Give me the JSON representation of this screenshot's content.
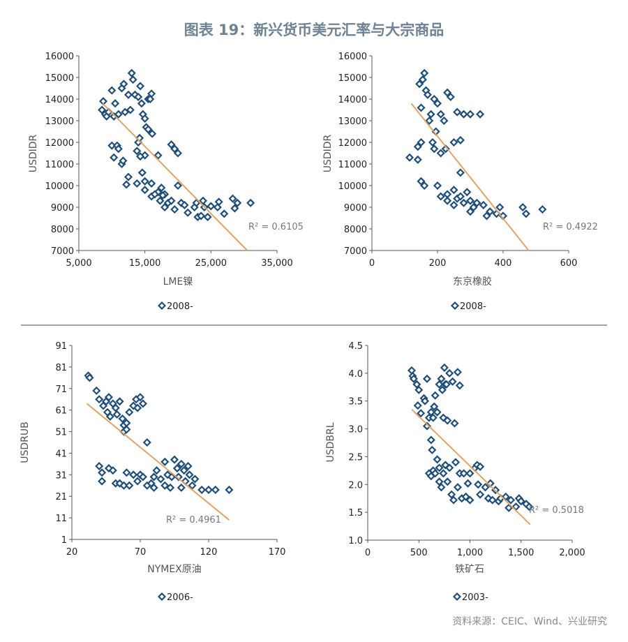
{
  "title": "图表 19：新兴货币美元汇率与大宗商品",
  "source": "资料来源：CEIC、Wind、兴业研究",
  "colors": {
    "marker": "#1f4e79",
    "trend": "#e0a466",
    "axis": "#555555",
    "title": "#6f8293"
  },
  "chart_data": [
    {
      "type": "scatter",
      "xlabel": "LME镍",
      "ylabel": "USDIDR",
      "xlim": [
        5000,
        35000
      ],
      "ylim": [
        7000,
        16000
      ],
      "xticks": [
        5000,
        15000,
        25000,
        35000
      ],
      "xtick_labels": [
        "5,000",
        "15,000",
        "25,000",
        "35,000"
      ],
      "yticks": [
        7000,
        8000,
        9000,
        10000,
        11000,
        12000,
        13000,
        14000,
        15000,
        16000
      ],
      "ytick_labels": [
        "7000",
        "8000",
        "9000",
        "10000",
        "11000",
        "12000",
        "13000",
        "14000",
        "15000",
        "16000"
      ],
      "legend": "2008-",
      "legend_position": "bottom",
      "r2_label": "R² = 0.6105",
      "trendline": [
        [
          8600,
          13800
        ],
        [
          30500,
          7000
        ]
      ],
      "points": [
        [
          8500,
          13500
        ],
        [
          8700,
          13900
        ],
        [
          9000,
          13300
        ],
        [
          9200,
          13200
        ],
        [
          9500,
          13400
        ],
        [
          10000,
          14400
        ],
        [
          10500,
          13800
        ],
        [
          10300,
          13200
        ],
        [
          11000,
          13300
        ],
        [
          11500,
          14500
        ],
        [
          11800,
          14700
        ],
        [
          12000,
          13400
        ],
        [
          12500,
          14200
        ],
        [
          12800,
          13500
        ],
        [
          13000,
          15200
        ],
        [
          13200,
          14900
        ],
        [
          13500,
          14200
        ],
        [
          14000,
          14100
        ],
        [
          14300,
          14600
        ],
        [
          14500,
          13800
        ],
        [
          14700,
          13300
        ],
        [
          15000,
          13100
        ],
        [
          15500,
          14000
        ],
        [
          15800,
          14000
        ],
        [
          16000,
          14250
        ],
        [
          15200,
          12700
        ],
        [
          15500,
          12600
        ],
        [
          16100,
          12400
        ],
        [
          14000,
          12000
        ],
        [
          14200,
          12200
        ],
        [
          15000,
          11400
        ],
        [
          14300,
          11350
        ],
        [
          13800,
          11600
        ],
        [
          17000,
          11400
        ],
        [
          19000,
          11900
        ],
        [
          19500,
          11700
        ],
        [
          20000,
          11500
        ],
        [
          10000,
          11850
        ],
        [
          10300,
          11300
        ],
        [
          10800,
          11850
        ],
        [
          11000,
          11700
        ],
        [
          11500,
          11000
        ],
        [
          11700,
          11150
        ],
        [
          12500,
          10400
        ],
        [
          12200,
          10050
        ],
        [
          14600,
          10600
        ],
        [
          13800,
          10100
        ],
        [
          15000,
          10200
        ],
        [
          16000,
          10100
        ],
        [
          15000,
          9800
        ],
        [
          16000,
          9500
        ],
        [
          17000,
          9700
        ],
        [
          17500,
          9900
        ],
        [
          18000,
          9600
        ],
        [
          17300,
          9300
        ],
        [
          18500,
          9200
        ],
        [
          18000,
          9000
        ],
        [
          19000,
          9300
        ],
        [
          19500,
          8900
        ],
        [
          20000,
          10000
        ],
        [
          20500,
          9200
        ],
        [
          21000,
          9100
        ],
        [
          21500,
          8750
        ],
        [
          22500,
          9000
        ],
        [
          23000,
          8550
        ],
        [
          23500,
          8600
        ],
        [
          23800,
          9300
        ],
        [
          24000,
          9000
        ],
        [
          24500,
          8550
        ],
        [
          25000,
          9050
        ],
        [
          26000,
          9000
        ],
        [
          26200,
          9250
        ],
        [
          27000,
          8700
        ],
        [
          28300,
          9400
        ],
        [
          28600,
          8950
        ],
        [
          29000,
          9200
        ],
        [
          31000,
          9200
        ],
        [
          22800,
          9200
        ],
        [
          17700,
          9550
        ],
        [
          16500,
          9600
        ]
      ]
    },
    {
      "type": "scatter",
      "xlabel": "东京橡胶",
      "ylabel": "USDIDR",
      "xlim": [
        0,
        600
      ],
      "ylim": [
        7000,
        16000
      ],
      "xticks": [
        0,
        200,
        400,
        600
      ],
      "xtick_labels": [
        "0",
        "200",
        "400",
        "600"
      ],
      "yticks": [
        7000,
        8000,
        9000,
        10000,
        11000,
        12000,
        13000,
        14000,
        15000,
        16000
      ],
      "ytick_labels": [
        "7000",
        "8000",
        "9000",
        "10000",
        "11000",
        "12000",
        "13000",
        "14000",
        "15000",
        "16000"
      ],
      "legend": "2008-",
      "legend_position": "bottom",
      "r2_label": "R² = 0.4922",
      "trendline": [
        [
          120,
          13800
        ],
        [
          478,
          7000
        ]
      ],
      "points": [
        [
          115,
          11300
        ],
        [
          140,
          11800
        ],
        [
          150,
          12000
        ],
        [
          145,
          14700
        ],
        [
          155,
          14900
        ],
        [
          160,
          15200
        ],
        [
          165,
          14400
        ],
        [
          150,
          13600
        ],
        [
          170,
          14200
        ],
        [
          180,
          13300
        ],
        [
          175,
          13000
        ],
        [
          190,
          14000
        ],
        [
          200,
          13800
        ],
        [
          210,
          13300
        ],
        [
          220,
          13000
        ],
        [
          230,
          14300
        ],
        [
          240,
          14100
        ],
        [
          185,
          12000
        ],
        [
          190,
          11700
        ],
        [
          195,
          12500
        ],
        [
          210,
          11500
        ],
        [
          225,
          11700
        ],
        [
          250,
          12000
        ],
        [
          270,
          12100
        ],
        [
          260,
          13400
        ],
        [
          280,
          13300
        ],
        [
          300,
          13300
        ],
        [
          330,
          13300
        ],
        [
          150,
          10200
        ],
        [
          160,
          10000
        ],
        [
          140,
          11200
        ],
        [
          200,
          10000
        ],
        [
          210,
          9500
        ],
        [
          230,
          9600
        ],
        [
          250,
          9800
        ],
        [
          260,
          9400
        ],
        [
          270,
          9500
        ],
        [
          280,
          9200
        ],
        [
          290,
          9700
        ],
        [
          300,
          9300
        ],
        [
          310,
          9000
        ],
        [
          320,
          9200
        ],
        [
          340,
          9100
        ],
        [
          360,
          8800
        ],
        [
          380,
          8700
        ],
        [
          390,
          9000
        ],
        [
          400,
          8600
        ],
        [
          460,
          9000
        ],
        [
          470,
          8700
        ],
        [
          520,
          8900
        ],
        [
          350,
          8600
        ],
        [
          250,
          9100
        ],
        [
          270,
          10600
        ],
        [
          230,
          9300
        ],
        [
          300,
          8800
        ]
      ]
    },
    {
      "type": "scatter",
      "xlabel": "NYMEX原油",
      "ylabel": "USDRUB",
      "xlim": [
        20,
        170
      ],
      "ylim": [
        1,
        91
      ],
      "xticks": [
        20,
        70,
        120,
        170
      ],
      "xtick_labels": [
        "20",
        "70",
        "120",
        "170"
      ],
      "yticks": [
        1,
        11,
        21,
        31,
        41,
        51,
        61,
        71,
        81,
        91
      ],
      "ytick_labels": [
        "1",
        "11",
        "21",
        "31",
        "41",
        "51",
        "61",
        "71",
        "81",
        "91"
      ],
      "legend": "2006-",
      "legend_position": "bottom",
      "r2_label": "R² = 0.4961",
      "trendline": [
        [
          31,
          64
        ],
        [
          135,
          10
        ]
      ],
      "points": [
        [
          32,
          77
        ],
        [
          33,
          76
        ],
        [
          38,
          70
        ],
        [
          40,
          66
        ],
        [
          43,
          63
        ],
        [
          45,
          65
        ],
        [
          46,
          60
        ],
        [
          47,
          67
        ],
        [
          48,
          58
        ],
        [
          50,
          64
        ],
        [
          52,
          62
        ],
        [
          53,
          59
        ],
        [
          55,
          65
        ],
        [
          57,
          57
        ],
        [
          58,
          54
        ],
        [
          60,
          55
        ],
        [
          62,
          60
        ],
        [
          65,
          63
        ],
        [
          67,
          66
        ],
        [
          68,
          62
        ],
        [
          70,
          67
        ],
        [
          72,
          64
        ],
        [
          58,
          51
        ],
        [
          60,
          52
        ],
        [
          75,
          46
        ],
        [
          40,
          35
        ],
        [
          42,
          32
        ],
        [
          42,
          28
        ],
        [
          47,
          34
        ],
        [
          50,
          33
        ],
        [
          52,
          27
        ],
        [
          55,
          27
        ],
        [
          58,
          26
        ],
        [
          60,
          32
        ],
        [
          62,
          26
        ],
        [
          65,
          31
        ],
        [
          68,
          28
        ],
        [
          70,
          31
        ],
        [
          72,
          30
        ],
        [
          75,
          26
        ],
        [
          78,
          27
        ],
        [
          80,
          30
        ],
        [
          82,
          33
        ],
        [
          85,
          29
        ],
        [
          88,
          26
        ],
        [
          90,
          31
        ],
        [
          92,
          25
        ],
        [
          95,
          38
        ],
        [
          97,
          34
        ],
        [
          98,
          30
        ],
        [
          100,
          36
        ],
        [
          102,
          33
        ],
        [
          103,
          28
        ],
        [
          105,
          35
        ],
        [
          106,
          31
        ],
        [
          108,
          26
        ],
        [
          110,
          29
        ],
        [
          115,
          24
        ],
        [
          120,
          24
        ],
        [
          125,
          24
        ],
        [
          135,
          24
        ],
        [
          100,
          25
        ],
        [
          88,
          37
        ],
        [
          93,
          30
        ],
        [
          80,
          25
        ]
      ]
    },
    {
      "type": "scatter",
      "xlabel": "铁矿石",
      "ylabel": "USDBRL",
      "xlim": [
        0,
        2000
      ],
      "ylim": [
        1.0,
        4.5
      ],
      "xticks": [
        0,
        500,
        1000,
        1500,
        2000
      ],
      "xtick_labels": [
        "0",
        "500",
        "1,000",
        "1,500",
        "2,000"
      ],
      "yticks": [
        1.0,
        1.5,
        2.0,
        2.5,
        3.0,
        3.5,
        4.0,
        4.5
      ],
      "ytick_labels": [
        "1.0",
        "1.5",
        "2.0",
        "2.5",
        "3.0",
        "3.5",
        "4.0",
        "4.5"
      ],
      "legend": "2003-",
      "legend_position": "bottom",
      "r2_label": "R² = 0.5018",
      "trendline": [
        [
          430,
          3.35
        ],
        [
          1590,
          1.28
        ]
      ],
      "points": [
        [
          430,
          4.05
        ],
        [
          440,
          3.95
        ],
        [
          450,
          3.9
        ],
        [
          480,
          3.8
        ],
        [
          500,
          3.7
        ],
        [
          490,
          3.42
        ],
        [
          520,
          3.28
        ],
        [
          550,
          3.55
        ],
        [
          560,
          3.5
        ],
        [
          580,
          3.9
        ],
        [
          600,
          3.2
        ],
        [
          620,
          3.3
        ],
        [
          580,
          3.05
        ],
        [
          620,
          2.8
        ],
        [
          630,
          2.62
        ],
        [
          640,
          3.2
        ],
        [
          650,
          3.4
        ],
        [
          660,
          3.6
        ],
        [
          680,
          3.3
        ],
        [
          700,
          3.8
        ],
        [
          720,
          3.9
        ],
        [
          730,
          3.7
        ],
        [
          740,
          3.2
        ],
        [
          750,
          4.1
        ],
        [
          760,
          3.8
        ],
        [
          770,
          3.8
        ],
        [
          780,
          3.15
        ],
        [
          800,
          4.0
        ],
        [
          830,
          3.85
        ],
        [
          850,
          3.1
        ],
        [
          880,
          4.02
        ],
        [
          900,
          3.78
        ],
        [
          600,
          2.2
        ],
        [
          620,
          2.15
        ],
        [
          640,
          2.25
        ],
        [
          660,
          2.2
        ],
        [
          680,
          2.45
        ],
        [
          700,
          2.3
        ],
        [
          700,
          2.05
        ],
        [
          720,
          1.95
        ],
        [
          740,
          2.2
        ],
        [
          760,
          2.35
        ],
        [
          780,
          2.05
        ],
        [
          800,
          2.3
        ],
        [
          820,
          1.82
        ],
        [
          840,
          1.72
        ],
        [
          860,
          2.4
        ],
        [
          880,
          1.95
        ],
        [
          900,
          2.2
        ],
        [
          920,
          1.75
        ],
        [
          940,
          2.2
        ],
        [
          960,
          1.78
        ],
        [
          980,
          2.02
        ],
        [
          1000,
          2.2
        ],
        [
          1050,
          2.3
        ],
        [
          1070,
          2.35
        ],
        [
          1080,
          2.0
        ],
        [
          1100,
          2.32
        ],
        [
          1100,
          1.82
        ],
        [
          1150,
          1.95
        ],
        [
          1200,
          2.02
        ],
        [
          1180,
          1.75
        ],
        [
          1220,
          1.72
        ],
        [
          1250,
          1.9
        ],
        [
          1280,
          1.7
        ],
        [
          1300,
          1.75
        ],
        [
          1350,
          1.78
        ],
        [
          1380,
          1.58
        ],
        [
          1400,
          1.72
        ],
        [
          1450,
          1.6
        ],
        [
          1480,
          1.75
        ],
        [
          1500,
          1.7
        ],
        [
          1550,
          1.65
        ],
        [
          1580,
          1.6
        ],
        [
          1000,
          1.72
        ]
      ]
    }
  ]
}
